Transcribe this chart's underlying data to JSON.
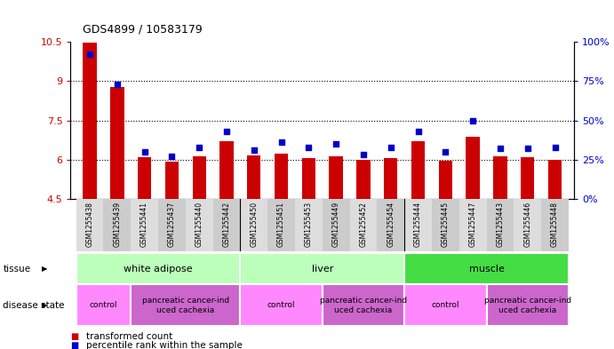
{
  "title": "GDS4899 / 10583179",
  "samples": [
    "GSM1255438",
    "GSM1255439",
    "GSM1255441",
    "GSM1255437",
    "GSM1255440",
    "GSM1255442",
    "GSM1255450",
    "GSM1255451",
    "GSM1255453",
    "GSM1255449",
    "GSM1255452",
    "GSM1255454",
    "GSM1255444",
    "GSM1255445",
    "GSM1255447",
    "GSM1255443",
    "GSM1255446",
    "GSM1255448"
  ],
  "transformed_count": [
    10.47,
    8.78,
    6.08,
    5.94,
    6.13,
    6.72,
    6.17,
    6.22,
    6.07,
    6.13,
    5.99,
    6.07,
    6.72,
    5.97,
    6.88,
    6.12,
    6.08,
    5.99
  ],
  "percentile_rank": [
    92,
    73,
    30,
    27,
    33,
    43,
    31,
    36,
    33,
    35,
    28,
    33,
    43,
    30,
    50,
    32,
    32,
    33
  ],
  "ylim_left": [
    4.5,
    10.5
  ],
  "ylim_right": [
    0,
    100
  ],
  "yticks_left": [
    4.5,
    6.0,
    7.5,
    9.0,
    10.5
  ],
  "yticks_right": [
    0,
    25,
    50,
    75,
    100
  ],
  "bar_color": "#cc0000",
  "dot_color": "#0000cc",
  "tissue_groups": [
    {
      "label": "white adipose",
      "start": 0,
      "end": 5,
      "color": "#bbffbb"
    },
    {
      "label": "liver",
      "start": 6,
      "end": 11,
      "color": "#bbffbb"
    },
    {
      "label": "muscle",
      "start": 12,
      "end": 17,
      "color": "#44dd44"
    }
  ],
  "disease_groups": [
    {
      "label": "control",
      "start": 0,
      "end": 1,
      "color": "#ff88ff"
    },
    {
      "label": "pancreatic cancer-ind\nuced cachexia",
      "start": 2,
      "end": 5,
      "color": "#cc66cc"
    },
    {
      "label": "control",
      "start": 6,
      "end": 8,
      "color": "#ff88ff"
    },
    {
      "label": "pancreatic cancer-ind\nuced cachexia",
      "start": 9,
      "end": 11,
      "color": "#cc66cc"
    },
    {
      "label": "control",
      "start": 12,
      "end": 14,
      "color": "#ff88ff"
    },
    {
      "label": "pancreatic cancer-ind\nuced cachexia",
      "start": 15,
      "end": 17,
      "color": "#cc66cc"
    }
  ],
  "bar_width": 0.5,
  "xticklabel_bg": "#dddddd",
  "group_separators": [
    5.5,
    11.5
  ]
}
